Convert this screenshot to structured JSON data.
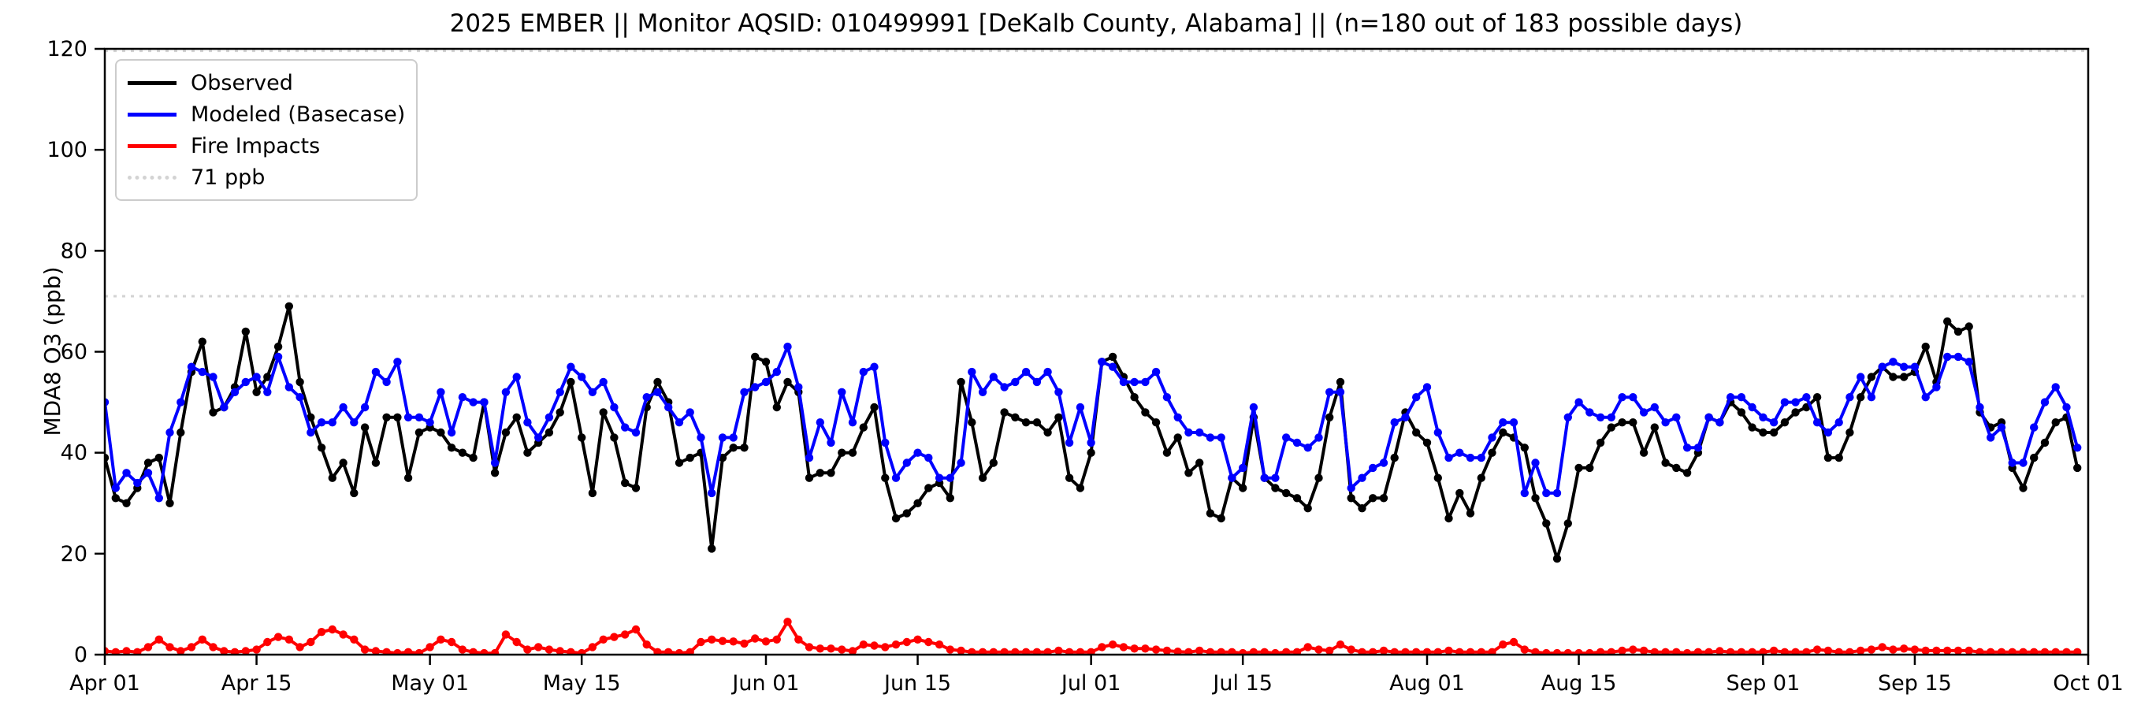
{
  "figure": {
    "title": "2025 EMBER || Monitor AQSID: 010499991 [DeKalb County, Alabama] || (n=180 out of 183 possible days)",
    "ylabel": "MDA8 O3 (ppb)"
  },
  "legend": {
    "entries": [
      {
        "label": "Observed",
        "color": "#000000",
        "style": "solid"
      },
      {
        "label": "Modeled (Basecase)",
        "color": "#0000ff",
        "style": "solid"
      },
      {
        "label": "Fire Impacts",
        "color": "#ff0000",
        "style": "solid"
      },
      {
        "label": "71 ppb",
        "color": "#d3d3d3",
        "style": "dotted"
      }
    ]
  },
  "chart_data": {
    "type": "line",
    "title": "2025 EMBER || Monitor AQSID: 010499991 [DeKalb County, Alabama] || (n=180 out of 183 possible days)",
    "xlabel": "",
    "ylabel": "MDA8 O3 (ppb)",
    "ylim": [
      0,
      120
    ],
    "yticks": [
      0,
      20,
      40,
      60,
      80,
      100,
      120
    ],
    "grid": false,
    "legend_position": "upper left",
    "x_start": "Apr 01",
    "x_end": "Oct 01",
    "n_days": 183,
    "xticks": [
      {
        "label": "Apr 01",
        "day": 0
      },
      {
        "label": "Apr 15",
        "day": 14
      },
      {
        "label": "May 01",
        "day": 30
      },
      {
        "label": "May 15",
        "day": 44
      },
      {
        "label": "Jun 01",
        "day": 61
      },
      {
        "label": "Jun 15",
        "day": 75
      },
      {
        "label": "Jul 01",
        "day": 91
      },
      {
        "label": "Jul 15",
        "day": 105
      },
      {
        "label": "Aug 01",
        "day": 122
      },
      {
        "label": "Aug 15",
        "day": 136
      },
      {
        "label": "Sep 01",
        "day": 153
      },
      {
        "label": "Sep 15",
        "day": 167
      },
      {
        "label": "Oct 01",
        "day": 183
      }
    ],
    "reference_lines": [
      {
        "label": "71 ppb",
        "value": 71,
        "color": "#d3d3d3",
        "style": "dotted"
      },
      {
        "label": "",
        "value": 119.6,
        "color": "#d3d3d3",
        "style": "dotted"
      }
    ],
    "series": [
      {
        "name": "Observed",
        "color": "#000000",
        "values": [
          39,
          31,
          30,
          33,
          38,
          39,
          30,
          44,
          56,
          62,
          48,
          49,
          53,
          64,
          52,
          55,
          61,
          69,
          54,
          47,
          41,
          35,
          38,
          32,
          45,
          38,
          47,
          47,
          35,
          44,
          45,
          44,
          41,
          40,
          39,
          50,
          36,
          44,
          47,
          40,
          42,
          44,
          48,
          54,
          43,
          32,
          48,
          43,
          34,
          33,
          49,
          54,
          50,
          38,
          39,
          40,
          21,
          39,
          41,
          41,
          59,
          58,
          49,
          54,
          52,
          35,
          36,
          36,
          40,
          40,
          45,
          49,
          35,
          27,
          28,
          30,
          33,
          34,
          31,
          54,
          46,
          35,
          38,
          48,
          47,
          46,
          46,
          44,
          47,
          35,
          33,
          40,
          58,
          59,
          55,
          51,
          48,
          46,
          40,
          43,
          36,
          38,
          28,
          27,
          35,
          33,
          47,
          35,
          33,
          32,
          31,
          29,
          35,
          47,
          54,
          31,
          29,
          31,
          31,
          39,
          48,
          44,
          42,
          35,
          27,
          32,
          28,
          35,
          40,
          44,
          43,
          41,
          31,
          26,
          19,
          26,
          37,
          37,
          42,
          45,
          46,
          46,
          40,
          45,
          38,
          37,
          36,
          40,
          47,
          46,
          50,
          48,
          45,
          44,
          44,
          46,
          48,
          49,
          51,
          39,
          39,
          44,
          51,
          55,
          57,
          55,
          55,
          56,
          61,
          54,
          66,
          64,
          65,
          48,
          45,
          46,
          37,
          33,
          39,
          42,
          46,
          47,
          37
        ]
      },
      {
        "name": "Modeled (Basecase)",
        "color": "#0000ff",
        "values": [
          50,
          33,
          36,
          34,
          36,
          31,
          44,
          50,
          57,
          56,
          55,
          49,
          52,
          54,
          55,
          52,
          59,
          53,
          51,
          44,
          46,
          46,
          49,
          46,
          49,
          56,
          54,
          58,
          47,
          47,
          46,
          52,
          44,
          51,
          50,
          50,
          38,
          52,
          55,
          46,
          43,
          47,
          52,
          57,
          55,
          52,
          54,
          49,
          45,
          44,
          51,
          52,
          49,
          46,
          48,
          43,
          32,
          43,
          43,
          52,
          53,
          54,
          56,
          61,
          53,
          39,
          46,
          42,
          52,
          46,
          56,
          57,
          42,
          35,
          38,
          40,
          39,
          35,
          35,
          38,
          56,
          52,
          55,
          53,
          54,
          56,
          54,
          56,
          52,
          42,
          49,
          42,
          58,
          57,
          54,
          54,
          54,
          56,
          51,
          47,
          44,
          44,
          43,
          43,
          35,
          37,
          49,
          35,
          35,
          43,
          42,
          41,
          43,
          52,
          52,
          33,
          35,
          37,
          38,
          46,
          47,
          51,
          53,
          44,
          39,
          40,
          39,
          39,
          43,
          46,
          46,
          32,
          38,
          32,
          32,
          47,
          50,
          48,
          47,
          47,
          51,
          51,
          48,
          49,
          46,
          47,
          41,
          41,
          47,
          46,
          51,
          51,
          49,
          47,
          46,
          50,
          50,
          51,
          46,
          44,
          46,
          51,
          55,
          51,
          57,
          58,
          57,
          57,
          51,
          53,
          59,
          59,
          58,
          49,
          43,
          45,
          38,
          38,
          45,
          50,
          53,
          49,
          41
        ]
      },
      {
        "name": "Fire Impacts",
        "color": "#ff0000",
        "values": [
          0.7,
          0.5,
          0.7,
          0.5,
          1.5,
          3,
          1.5,
          0.7,
          1.5,
          3,
          1.5,
          0.7,
          0.5,
          0.7,
          1,
          2.5,
          3.5,
          3,
          1.5,
          2.5,
          4.5,
          5,
          4,
          3,
          1,
          0.7,
          0.5,
          0.3,
          0.5,
          0.3,
          1.5,
          3,
          2.5,
          1,
          0.5,
          0.3,
          0.3,
          4,
          2.5,
          1,
          1.5,
          1,
          0.7,
          0.5,
          0.3,
          1.5,
          3,
          3.5,
          4,
          5,
          2,
          0.5,
          0.5,
          0.3,
          0.5,
          2.5,
          3,
          2.7,
          2.6,
          2.2,
          3.2,
          2.6,
          3,
          6.5,
          3,
          1.5,
          1.2,
          1.2,
          1,
          0.7,
          2,
          1.8,
          1.5,
          2,
          2.5,
          3,
          2.5,
          2,
          1,
          0.8,
          0.5,
          0.5,
          0.5,
          0.5,
          0.5,
          0.5,
          0.5,
          0.5,
          0.8,
          0.5,
          0.5,
          0.5,
          1.5,
          2,
          1.5,
          1.2,
          1.2,
          1,
          0.8,
          0.6,
          0.5,
          0.8,
          0.5,
          0.5,
          0.5,
          0.3,
          0.5,
          0.5,
          0.3,
          0.5,
          0.5,
          1.5,
          1,
          0.8,
          2,
          1,
          0.5,
          0.5,
          0.8,
          0.5,
          0.5,
          0.5,
          0.5,
          0.5,
          0.8,
          0.5,
          0.5,
          0.5,
          0.5,
          2,
          2.5,
          1,
          0.5,
          0.3,
          0.3,
          0.3,
          0.3,
          0.3,
          0.5,
          0.5,
          0.8,
          1,
          0.8,
          0.5,
          0.5,
          0.5,
          0.3,
          0.5,
          0.5,
          0.7,
          0.5,
          0.5,
          0.5,
          0.5,
          0.8,
          0.5,
          0.5,
          0.5,
          1,
          0.8,
          0.5,
          0.5,
          0.8,
          1,
          1.5,
          1,
          1.2,
          1,
          0.8,
          0.8,
          0.8,
          0.8,
          0.8,
          0.5,
          0.5,
          0.5,
          0.5,
          0.5,
          0.5,
          0.5,
          0.5,
          0.5,
          0.5
        ]
      }
    ]
  }
}
